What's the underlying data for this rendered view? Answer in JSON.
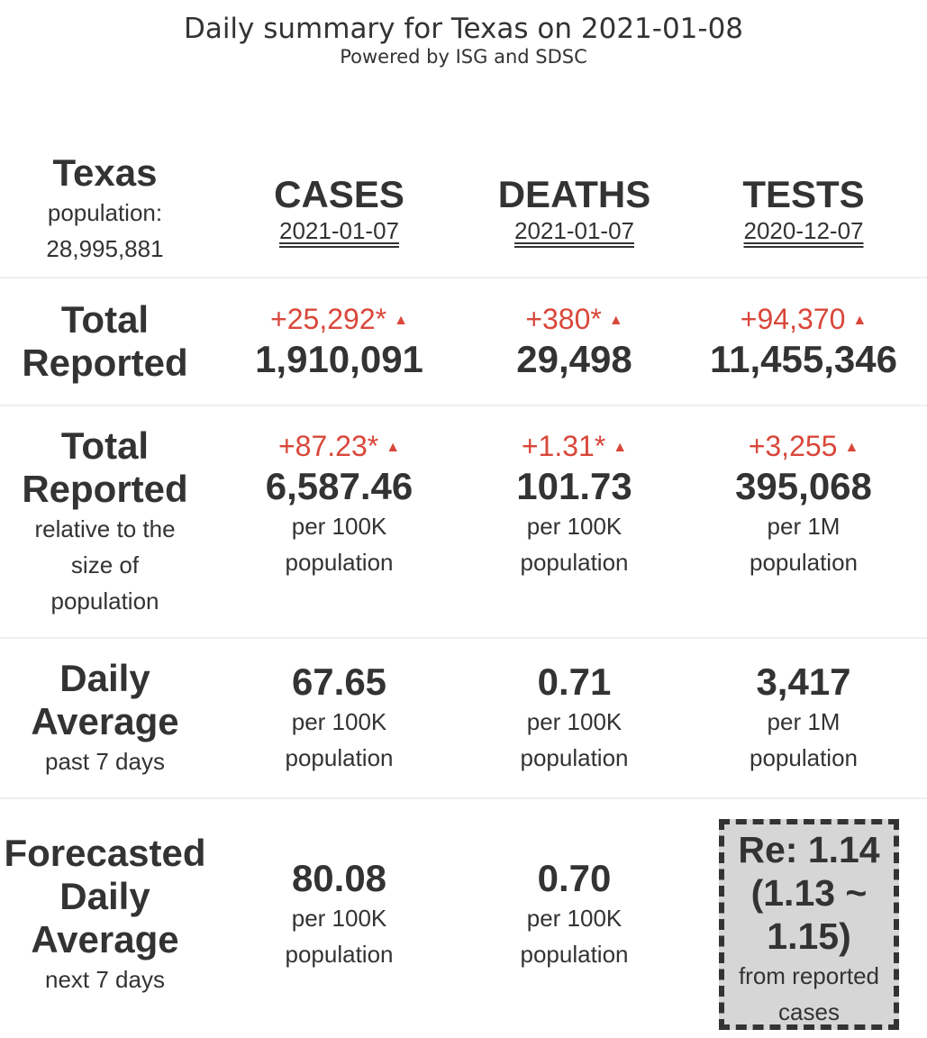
{
  "header": {
    "title": "Daily summary for Texas on 2021-01-08",
    "subtitle": "Powered by ISG and SDSC"
  },
  "region": {
    "name": "Texas",
    "population_label": "population:",
    "population_value": "28,995,881"
  },
  "columns": [
    {
      "heading": "CASES",
      "date": "2021-01-07"
    },
    {
      "heading": "DEATHS",
      "date": "2021-01-07"
    },
    {
      "heading": "TESTS",
      "date": "2020-12-07"
    }
  ],
  "icons": {
    "delta_up": "triangle-up-icon",
    "delta_up_glyph": "▲"
  },
  "colors": {
    "increase": "#d9473a",
    "text": "#333333",
    "re_box_bg": "#d6d6d6"
  },
  "total_reported": {
    "label_line1": "Total",
    "label_line2": "Reported",
    "cases": {
      "delta": "+25,292*",
      "value": "1,910,091"
    },
    "deaths": {
      "delta": "+380*",
      "value": "29,498"
    },
    "tests": {
      "delta": "+94,370",
      "value": "11,455,346"
    }
  },
  "relative": {
    "label_line1": "Total",
    "label_line2": "Reported",
    "sub_line1": "relative to the",
    "sub_line2": "size of",
    "sub_line3": "population",
    "cases": {
      "delta": "+87.23*",
      "value": "6,587.46",
      "unit_line1": "per 100K",
      "unit_line2": "population"
    },
    "deaths": {
      "delta": "+1.31*",
      "value": "101.73",
      "unit_line1": "per 100K",
      "unit_line2": "population"
    },
    "tests": {
      "delta": "+3,255",
      "value": "395,068",
      "unit_line1": "per 1M",
      "unit_line2": "population"
    }
  },
  "daily_average": {
    "label_line1": "Daily",
    "label_line2": "Average",
    "sub": "past 7 days",
    "cases": {
      "value": "67.65",
      "unit_line1": "per 100K",
      "unit_line2": "population"
    },
    "deaths": {
      "value": "0.71",
      "unit_line1": "per 100K",
      "unit_line2": "population"
    },
    "tests": {
      "value": "3,417",
      "unit_line1": "per 1M",
      "unit_line2": "population"
    }
  },
  "forecast": {
    "label_line1": "Forecasted",
    "label_line2": "Daily",
    "label_line3": "Average",
    "sub": "next 7 days",
    "cases": {
      "value": "80.08",
      "unit_line1": "per 100K",
      "unit_line2": "population"
    },
    "deaths": {
      "value": "0.70",
      "unit_line1": "per 100K",
      "unit_line2": "population"
    },
    "re": {
      "line1": "Re: 1.14",
      "line2": "(1.13 ~",
      "line3": "1.15)",
      "sub_line1": "from reported",
      "sub_line2": "cases"
    }
  }
}
